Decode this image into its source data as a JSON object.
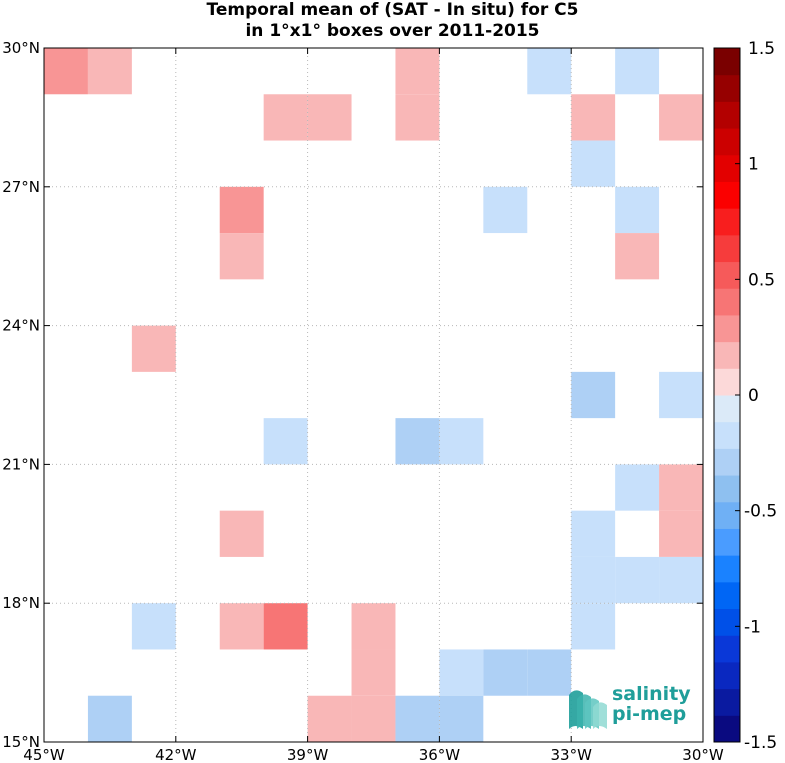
{
  "title": {
    "line1": "Temporal mean of (SAT - In situ) for C5",
    "line2": "in 1°x1° boxes over 2011-2015"
  },
  "logo": {
    "line1": "salinity",
    "line2": "pi-mep"
  },
  "colors": {
    "grid": "#b8b8b8",
    "frame": "#000000"
  },
  "chart_data": {
    "type": "heatmap",
    "title": "Temporal mean of (SAT - In situ) for C5 in 1°x1° boxes over 2011-2015",
    "xlabel": "",
    "ylabel": "",
    "xlim": [
      -45,
      -30
    ],
    "ylim": [
      15,
      30
    ],
    "grid": true,
    "x_ticks": [
      {
        "value": -45,
        "label": "45°W"
      },
      {
        "value": -42,
        "label": "42°W"
      },
      {
        "value": -39,
        "label": "39°W"
      },
      {
        "value": -36,
        "label": "36°W"
      },
      {
        "value": -33,
        "label": "33°W"
      },
      {
        "value": -30,
        "label": "30°W"
      }
    ],
    "y_ticks": [
      {
        "value": 15,
        "label": "15°N"
      },
      {
        "value": 18,
        "label": "18°N"
      },
      {
        "value": 21,
        "label": "21°N"
      },
      {
        "value": 24,
        "label": "24°N"
      },
      {
        "value": 27,
        "label": "27°N"
      },
      {
        "value": 30,
        "label": "30°N"
      }
    ],
    "colorbar": {
      "range": [
        -1.5,
        1.5
      ],
      "levels": 26,
      "ticks": [
        {
          "value": 1.5,
          "label": "1.5"
        },
        {
          "value": 1,
          "label": "1"
        },
        {
          "value": 0.5,
          "label": "0.5"
        },
        {
          "value": 0,
          "label": "0"
        },
        {
          "value": -0.5,
          "label": "-0.5"
        },
        {
          "value": -1,
          "label": "-1"
        },
        {
          "value": -1.5,
          "label": "-1.5"
        }
      ],
      "colors_low_to_high": [
        "#0a0a80",
        "#0a1aa0",
        "#0a28c0",
        "#0a38d8",
        "#0050e8",
        "#0066f5",
        "#1a82ff",
        "#4a9cff",
        "#6fb0f5",
        "#8ec0f0",
        "#aed0f5",
        "#c7e0fb",
        "#dbeaf8",
        "#fcd9d9",
        "#f9b7b7",
        "#f89595",
        "#f77575",
        "#f65a5a",
        "#f63c3c",
        "#f81e1e",
        "#fb0000",
        "#e30000",
        "#cc0000",
        "#b30000",
        "#960000",
        "#7a0000"
      ]
    },
    "cells": [
      {
        "lon": -45,
        "lat": 29,
        "value": 0.25
      },
      {
        "lon": -44,
        "lat": 29,
        "value": 0.15
      },
      {
        "lon": -37,
        "lat": 29,
        "value": 0.15
      },
      {
        "lon": -34,
        "lat": 29,
        "value": -0.15
      },
      {
        "lon": -32,
        "lat": 29,
        "value": -0.15
      },
      {
        "lon": -40,
        "lat": 28,
        "value": 0.15
      },
      {
        "lon": -39,
        "lat": 28,
        "value": 0.15
      },
      {
        "lon": -37,
        "lat": 28,
        "value": 0.15
      },
      {
        "lon": -33,
        "lat": 28,
        "value": 0.15
      },
      {
        "lon": -31,
        "lat": 28,
        "value": 0.15
      },
      {
        "lon": -33,
        "lat": 27,
        "value": -0.15
      },
      {
        "lon": -41,
        "lat": 26,
        "value": 0.25
      },
      {
        "lon": -35,
        "lat": 26,
        "value": -0.15
      },
      {
        "lon": -32,
        "lat": 26,
        "value": -0.15
      },
      {
        "lon": -41,
        "lat": 25,
        "value": 0.15
      },
      {
        "lon": -32,
        "lat": 25,
        "value": 0.15
      },
      {
        "lon": -43,
        "lat": 23,
        "value": 0.15
      },
      {
        "lon": -33,
        "lat": 22,
        "value": -0.25
      },
      {
        "lon": -31,
        "lat": 22,
        "value": -0.15
      },
      {
        "lon": -40,
        "lat": 21,
        "value": -0.15
      },
      {
        "lon": -37,
        "lat": 21,
        "value": -0.25
      },
      {
        "lon": -36,
        "lat": 21,
        "value": -0.15
      },
      {
        "lon": -32,
        "lat": 20,
        "value": -0.15
      },
      {
        "lon": -31,
        "lat": 20,
        "value": 0.15
      },
      {
        "lon": -41,
        "lat": 19,
        "value": 0.15
      },
      {
        "lon": -33,
        "lat": 19,
        "value": -0.15
      },
      {
        "lon": -31,
        "lat": 19,
        "value": 0.15
      },
      {
        "lon": -33,
        "lat": 18,
        "value": -0.15
      },
      {
        "lon": -32,
        "lat": 18,
        "value": -0.15
      },
      {
        "lon": -31,
        "lat": 18,
        "value": -0.15
      },
      {
        "lon": -43,
        "lat": 17,
        "value": -0.15
      },
      {
        "lon": -41,
        "lat": 17,
        "value": 0.15
      },
      {
        "lon": -40,
        "lat": 17,
        "value": 0.45
      },
      {
        "lon": -38,
        "lat": 17,
        "value": 0.15
      },
      {
        "lon": -33,
        "lat": 17,
        "value": -0.15
      },
      {
        "lon": -38,
        "lat": 16,
        "value": 0.15
      },
      {
        "lon": -36,
        "lat": 16,
        "value": -0.15
      },
      {
        "lon": -35,
        "lat": 16,
        "value": -0.25
      },
      {
        "lon": -34,
        "lat": 16,
        "value": -0.25
      },
      {
        "lon": -44,
        "lat": 15,
        "value": -0.25
      },
      {
        "lon": -39,
        "lat": 15,
        "value": 0.15
      },
      {
        "lon": -38,
        "lat": 15,
        "value": 0.15
      },
      {
        "lon": -37,
        "lat": 15,
        "value": -0.25
      },
      {
        "lon": -36,
        "lat": 15,
        "value": -0.25
      }
    ]
  }
}
